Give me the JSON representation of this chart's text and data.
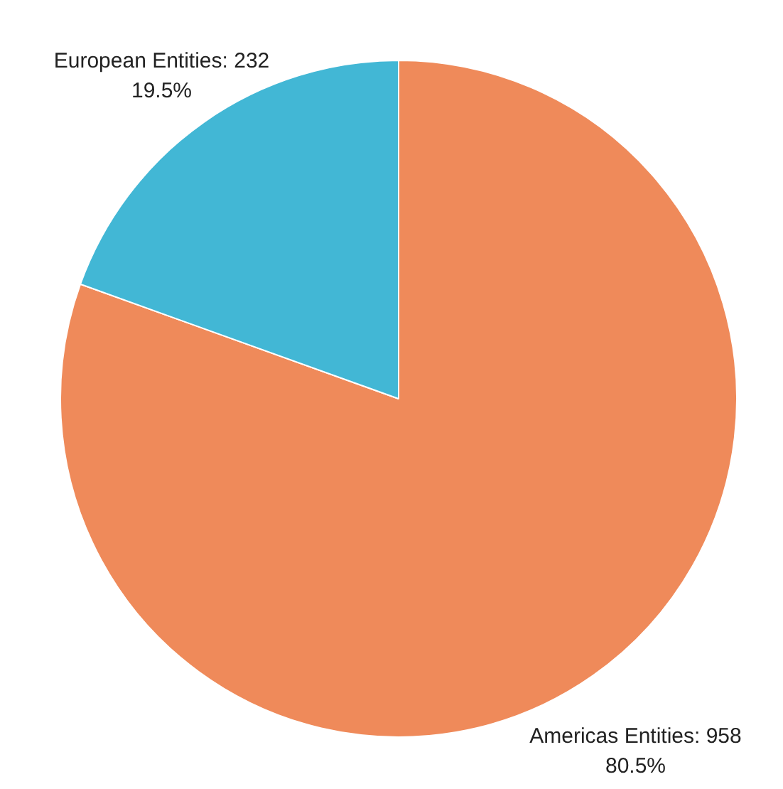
{
  "chart_data": {
    "type": "pie",
    "categories": [
      "Americas Entities: 958",
      "European Entities: 232"
    ],
    "values": [
      80.5,
      19.5
    ],
    "colors": [
      "#ef8a5a",
      "#42b7d5"
    ],
    "value_labels": [
      "80.5%",
      "19.5%"
    ]
  }
}
